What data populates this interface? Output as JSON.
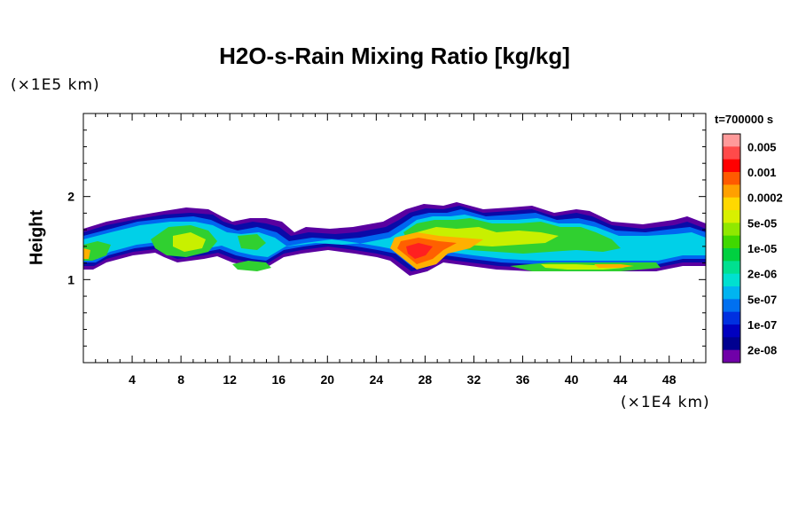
{
  "chart_data": {
    "type": "heatmap",
    "title": "H2O-s-Rain Mixing Ratio [kg/kg]",
    "ylabel": "Height",
    "y_unit": "(×1E5 km)",
    "x_unit": "(×1E4 km)",
    "time_label": "t=700000 s",
    "xlim": [
      0,
      51
    ],
    "ylim": [
      0,
      3
    ],
    "x_ticks": [
      "4",
      "8",
      "12",
      "16",
      "20",
      "24",
      "28",
      "32",
      "36",
      "40",
      "44",
      "48"
    ],
    "y_ticks": [
      "1",
      "2"
    ],
    "colorbar": {
      "labels": [
        "0.005",
        "0.001",
        "0.0002",
        "5e-05",
        "1e-05",
        "2e-06",
        "5e-07",
        "1e-07",
        "2e-08"
      ],
      "colors": [
        "#ff9a9a",
        "#ff4a4a",
        "#ff0000",
        "#ff5a00",
        "#ffa000",
        "#ffd800",
        "#d8f000",
        "#90e800",
        "#40d800",
        "#00d040",
        "#00e090",
        "#00e0d0",
        "#00b4f0",
        "#0070f0",
        "#0030e0",
        "#0000c0",
        "#000090",
        "#7000a8"
      ]
    }
  }
}
